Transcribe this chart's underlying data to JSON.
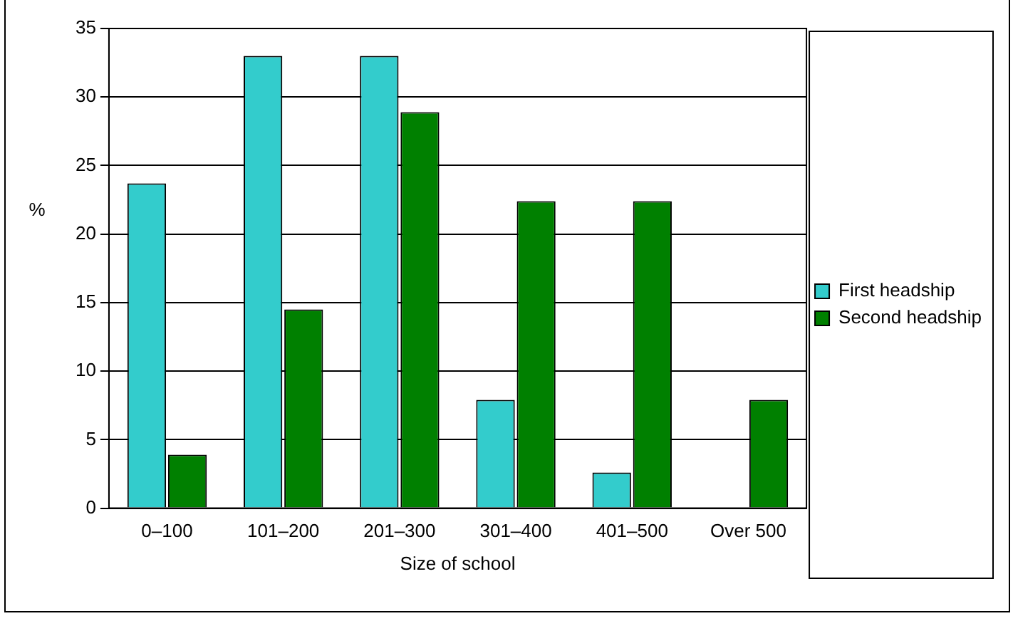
{
  "chart_data": {
    "type": "bar",
    "xlabel": "Size of school",
    "ylabel": "%",
    "categories": [
      "0–100",
      "101–200",
      "201–300",
      "301–400",
      "401–500",
      "Over 500"
    ],
    "series": [
      {
        "name": "First headship",
        "color": "#33cccc",
        "values": [
          23.7,
          33,
          33,
          7.9,
          2.6,
          0
        ]
      },
      {
        "name": "Second headship",
        "color": "#008000",
        "values": [
          3.9,
          14.5,
          28.9,
          22.4,
          22.4,
          7.9
        ]
      }
    ],
    "ylim": [
      0,
      35
    ],
    "yticks": [
      0,
      5,
      10,
      15,
      20,
      25,
      30,
      35
    ],
    "grid": "y",
    "legend": "right"
  }
}
